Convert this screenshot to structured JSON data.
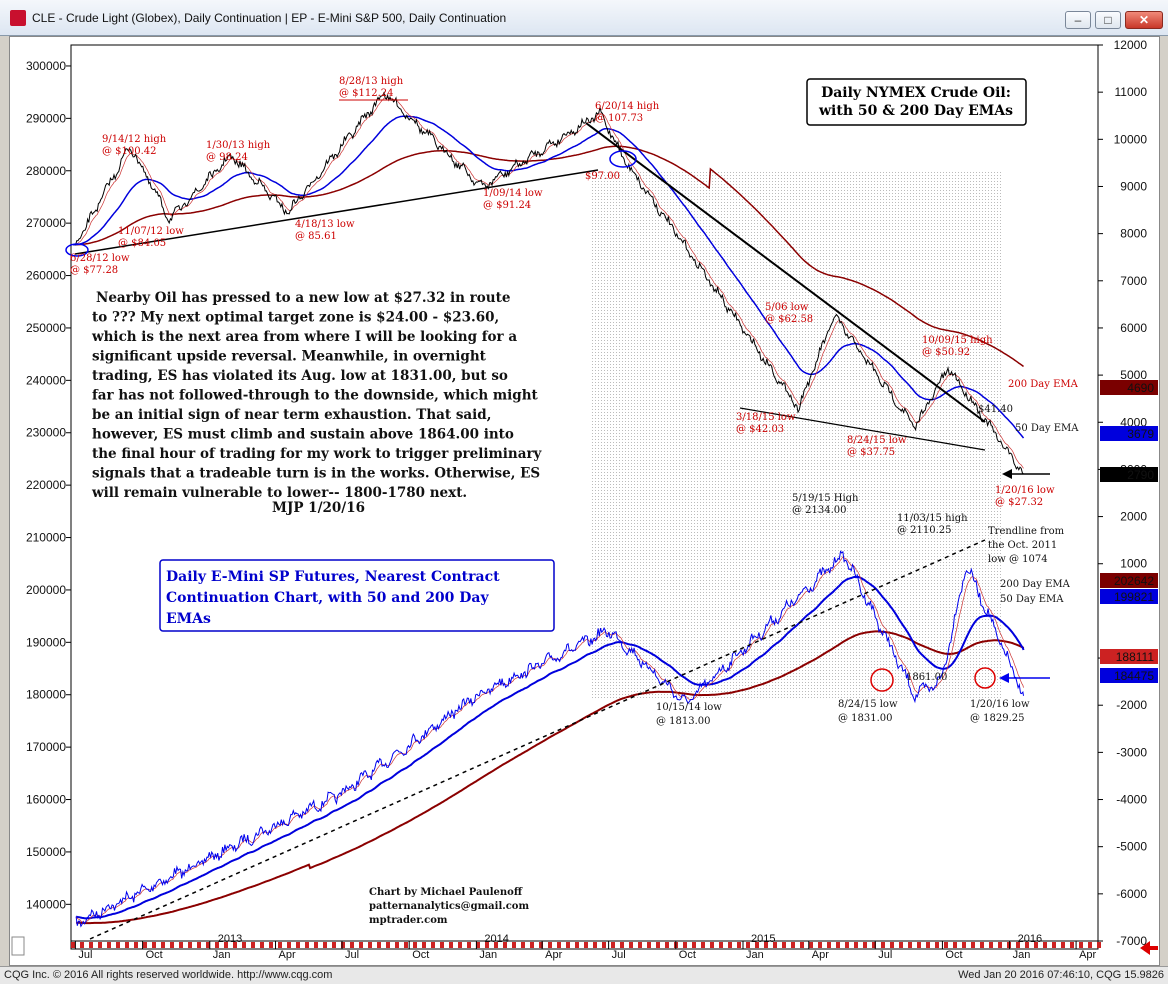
{
  "window": {
    "title": "CLE - Crude Light (Globex), Daily Continuation    |    EP - E-Mini S&P 500, Daily Continuation",
    "btn_min": "‒",
    "btn_max": "□",
    "btn_close": "✕"
  },
  "status": {
    "left": "CQG Inc. © 2016 All rights reserved worldwide. http://www.cqg.com",
    "right": "Wed Jan 20 2016 07:46:10, CQG 15.9826"
  },
  "chart_data": [
    {
      "type": "line",
      "title": "Daily NYMEX Crude Oil: with 50 & 200 Day EMAs",
      "title_lines": [
        "Daily NYMEX Crude Oil:",
        "with 50 & 200 Day EMAs"
      ],
      "y_axis_side": "right",
      "ylim": [
        -7000,
        12000
      ],
      "yticks": [
        "12000",
        "11000",
        "10000",
        "9000",
        "8000",
        "7000",
        "6000",
        "5000",
        "4000",
        "3000",
        "2000",
        "1000",
        "-1000",
        "-2000",
        "-3000",
        "-4000",
        "-5000",
        "-6000",
        "-7000"
      ],
      "price_points": [
        {
          "date": "2012-06-28",
          "value": 77.28
        },
        {
          "date": "2012-09-14",
          "value": 100.42
        },
        {
          "date": "2012-11-07",
          "value": 84.05
        },
        {
          "date": "2013-01-30",
          "value": 98.24
        },
        {
          "date": "2013-04-18",
          "value": 85.61
        },
        {
          "date": "2013-08-28",
          "value": 112.24
        },
        {
          "date": "2014-01-09",
          "value": 91.24
        },
        {
          "date": "2014-06-20",
          "value": 107.73
        },
        {
          "date": "2014-07-24",
          "value": 97.0
        },
        {
          "date": "2015-03-18",
          "value": 42.03
        },
        {
          "date": "2015-05-06",
          "value": 62.58
        },
        {
          "date": "2015-08-24",
          "value": 37.75
        },
        {
          "date": "2015-10-09",
          "value": 50.92
        },
        {
          "date": "2016-01-20",
          "value": 27.32
        }
      ],
      "series": [
        {
          "name": "200 Day EMA",
          "color": "#8b0000",
          "last_label": "4690"
        },
        {
          "name": "50 Day EMA",
          "color": "#0000dd",
          "last_label": "3679"
        }
      ],
      "last_price_label": "2790",
      "trendline_label": "$41.40",
      "annotations": [
        {
          "line1": "9/14/12 high",
          "line2": "@ $100.42"
        },
        {
          "line1": "1/30/13 high",
          "line2": "@ 98.24"
        },
        {
          "line1": "8/28/13 high",
          "line2": "@ $112.24"
        },
        {
          "line1": "6/20/14 high",
          "line2": "@ 107.73"
        },
        {
          "line1": "11/07/12 low",
          "line2": "@ $84.05"
        },
        {
          "line1": "4/18/13 low",
          "line2": "@ 85.61"
        },
        {
          "line1": "1/09/14 low",
          "line2": "@ $91.24"
        },
        {
          "line1": "6/28/12 low",
          "line2": "@ $77.28"
        },
        {
          "line1": "$97.00",
          "line2": ""
        },
        {
          "line1": "5/06 low",
          "line2": "@ $62.58"
        },
        {
          "line1": "3/18/15 low",
          "line2": "@ $42.03"
        },
        {
          "line1": "8/24/15 low",
          "line2": "@ $37.75"
        },
        {
          "line1": "10/09/15 high",
          "line2": "@ $50.92"
        },
        {
          "line1": "1/20/16 low",
          "line2": "@ $27.32"
        }
      ]
    },
    {
      "type": "line",
      "title": "Daily E-Mini SP Futures, Nearest Contract Continuation Chart, with 50 and 200 Day EMAs",
      "title_lines": [
        "Daily E-Mini SP Futures, Nearest Contract",
        "Continuation Chart, with 50 and 200 Day",
        "EMAs"
      ],
      "y_axis_side": "left",
      "ylim": [
        133000,
        304000
      ],
      "yticks": [
        "300000",
        "290000",
        "280000",
        "270000",
        "260000",
        "250000",
        "240000",
        "230000",
        "220000",
        "210000",
        "200000",
        "190000",
        "180000",
        "170000",
        "160000",
        "150000",
        "140000"
      ],
      "price_points": [
        {
          "date": "2012-07-02",
          "value": 1340
        },
        {
          "date": "2013-07-01",
          "value": 1620
        },
        {
          "date": "2014-01-02",
          "value": 1830
        },
        {
          "date": "2014-07-01",
          "value": 1970
        },
        {
          "date": "2014-10-15",
          "value": 1813.0
        },
        {
          "date": "2015-05-19",
          "value": 2134.0
        },
        {
          "date": "2015-08-24",
          "value": 1831.0
        },
        {
          "date": "2015-09-29",
          "value": 1861.0
        },
        {
          "date": "2015-11-03",
          "value": 2110.25
        },
        {
          "date": "2016-01-20",
          "value": 1829.25
        }
      ],
      "series": [
        {
          "name": "200 Day EMA",
          "color": "#8b0000",
          "last_label": "202642"
        },
        {
          "name": "50 Day EMA",
          "color": "#0000dd",
          "last_label": "199821"
        }
      ],
      "last_price_labels": [
        "188111",
        "184475"
      ],
      "annotations": [
        {
          "line1": "5/19/15 High",
          "line2": "@ 2134.00"
        },
        {
          "line1": "11/03/15 high",
          "line2": "@ 2110.25"
        },
        {
          "line1": "10/15/14 low",
          "line2": "@ 1813.00"
        },
        {
          "line1": "8/24/15 low",
          "line2": "@ 1831.00"
        },
        {
          "line1": "1861.00",
          "line2": ""
        },
        {
          "line1": "1/20/16 low",
          "line2": "@ 1829.25"
        }
      ],
      "trendline_note": [
        "Trendline from",
        "the Oct. 2011",
        "low @ 1074"
      ]
    }
  ],
  "x_axis": {
    "months": [
      "Jul",
      "Oct",
      "Jan",
      "Apr",
      "Jul",
      "Oct",
      "Jan",
      "Apr",
      "Jul",
      "Oct",
      "Jan",
      "Apr",
      "Jul",
      "Oct",
      "Jan",
      "Apr"
    ],
    "years": [
      "2013",
      "2014",
      "2015",
      "2016"
    ]
  },
  "commentary": {
    "lines": [
      "Nearby Oil has pressed to a new low at $27.32 in route",
      "to ???  My next optimal target zone is $24.00 - $23.60,",
      "which is the next area from where I will be looking for a",
      "significant upside reversal. Meanwhile, in overnight",
      "trading, ES has violated its Aug. low at 1831.00, but so",
      "far has not followed-through to the downside, which might",
      "be an initial sign of near term exhaustion. That said,",
      "however, ES must climb and sustain above 1864.00 into",
      "the final hour of trading for my work to trigger preliminary",
      "signals that a tradeable turn is in the works. Otherwise, ES",
      "will remain vulnerable to lower-- 1800-1780 next."
    ],
    "signature": "MJP 1/20/16"
  },
  "credit": {
    "line1": "Chart by Michael Paulenoff",
    "line2": "patternanalytics@gmail.com",
    "line3": "mptrader.com"
  }
}
